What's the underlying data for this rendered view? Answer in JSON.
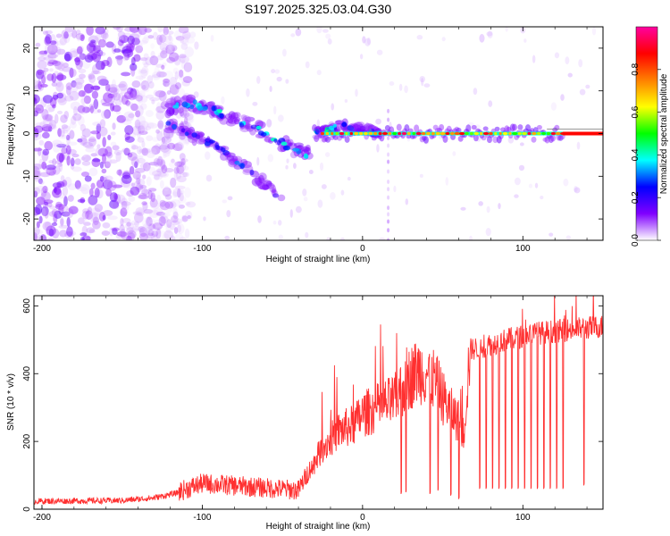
{
  "title": "S197.2025.325.03.04.G30",
  "chart_data": [
    {
      "id": "spectrogram",
      "type": "heatmap",
      "title": "S197.2025.325.03.04.G30",
      "xlabel": "Height of straight line (km)",
      "ylabel": "Frequency (Hz)",
      "xlim": [
        -205,
        150
      ],
      "ylim": [
        -25,
        25
      ],
      "x_ticks": [
        -200,
        -100,
        0,
        100
      ],
      "x_tick_labels": [
        "-200",
        "-100",
        "0",
        "100"
      ],
      "y_ticks": [
        -20,
        -10,
        0,
        10,
        20
      ],
      "y_tick_labels": [
        "-20",
        "-10",
        "0",
        "10",
        "20"
      ],
      "colorbar": {
        "label": "Normalized spectral amplitude",
        "range": [
          0,
          1
        ],
        "ticks": [
          0.0,
          0.2,
          0.4,
          0.6,
          0.8
        ],
        "tick_labels": [
          "0.0",
          "0.2",
          "0.4",
          "0.6",
          "0.8"
        ],
        "colors": [
          "#ffffff",
          "#8000ff",
          "#0000ff",
          "#00ffff",
          "#00ff00",
          "#ffff00",
          "#ff8000",
          "#ff0000",
          "#ff00a0"
        ]
      },
      "features": {
        "noise_region_km": [
          -205,
          -115
        ],
        "upper_arc": [
          [
            -122,
            6
          ],
          [
            -110,
            7
          ],
          [
            -95,
            6
          ],
          [
            -85,
            4
          ],
          [
            -70,
            2
          ],
          [
            -60,
            0
          ],
          [
            -52,
            -2
          ],
          [
            -40,
            -4
          ],
          [
            -33,
            -5
          ]
        ],
        "lower_arc": [
          [
            -122,
            2
          ],
          [
            -110,
            0
          ],
          [
            -95,
            -2
          ],
          [
            -80,
            -6
          ],
          [
            -70,
            -9
          ],
          [
            -60,
            -12
          ],
          [
            -50,
            -16
          ]
        ],
        "tail_arc": [
          [
            -30,
            0
          ],
          [
            -20,
            1
          ],
          [
            -12,
            2
          ],
          [
            -5,
            1
          ],
          [
            0,
            1
          ],
          [
            10,
            0
          ]
        ],
        "main_line_freq": 0,
        "main_line_km": [
          -30,
          150
        ],
        "vertical_streak_km": 16
      }
    },
    {
      "id": "snr",
      "type": "line",
      "xlabel": "Height of straight line (km)",
      "ylabel": "SNR (10 * v/v)",
      "xlim": [
        -205,
        150
      ],
      "ylim": [
        0,
        630
      ],
      "x_ticks": [
        -200,
        -100,
        0,
        100
      ],
      "x_tick_labels": [
        "-200",
        "-100",
        "0",
        "100"
      ],
      "y_ticks": [
        0,
        200,
        400,
        600
      ],
      "y_tick_labels": [
        "0",
        "200",
        "400",
        "600"
      ],
      "series_color": "#ff3030",
      "envelope": {
        "x": [
          -205,
          -150,
          -130,
          -115,
          -100,
          -85,
          -70,
          -55,
          -40,
          -32,
          -25,
          -15,
          -5,
          0,
          10,
          20,
          25,
          30,
          35,
          40,
          45,
          50,
          55,
          60,
          63,
          67,
          75,
          90,
          110,
          130,
          150
        ],
        "y": [
          20,
          22,
          30,
          45,
          70,
          65,
          60,
          55,
          50,
          120,
          180,
          230,
          250,
          280,
          300,
          320,
          360,
          390,
          410,
          405,
          380,
          330,
          290,
          260,
          220,
          470,
          480,
          500,
          520,
          530,
          540
        ]
      },
      "dropouts": [
        {
          "x": 24,
          "y": 45
        },
        {
          "x": 27,
          "y": 50
        },
        {
          "x": 42,
          "y": 45
        },
        {
          "x": 47,
          "y": 55
        },
        {
          "x": 55,
          "y": 40
        },
        {
          "x": 60,
          "y": 30
        },
        {
          "x": 73,
          "y": 60
        },
        {
          "x": 77,
          "y": 60
        },
        {
          "x": 81,
          "y": 60
        },
        {
          "x": 85,
          "y": 60
        },
        {
          "x": 89,
          "y": 60
        },
        {
          "x": 93,
          "y": 60
        },
        {
          "x": 97,
          "y": 60
        },
        {
          "x": 101,
          "y": 60
        },
        {
          "x": 105,
          "y": 60
        },
        {
          "x": 109,
          "y": 60
        },
        {
          "x": 113,
          "y": 60
        },
        {
          "x": 117,
          "y": 60
        },
        {
          "x": 121,
          "y": 60
        },
        {
          "x": 125,
          "y": 60
        },
        {
          "x": 138,
          "y": 70
        }
      ]
    }
  ]
}
